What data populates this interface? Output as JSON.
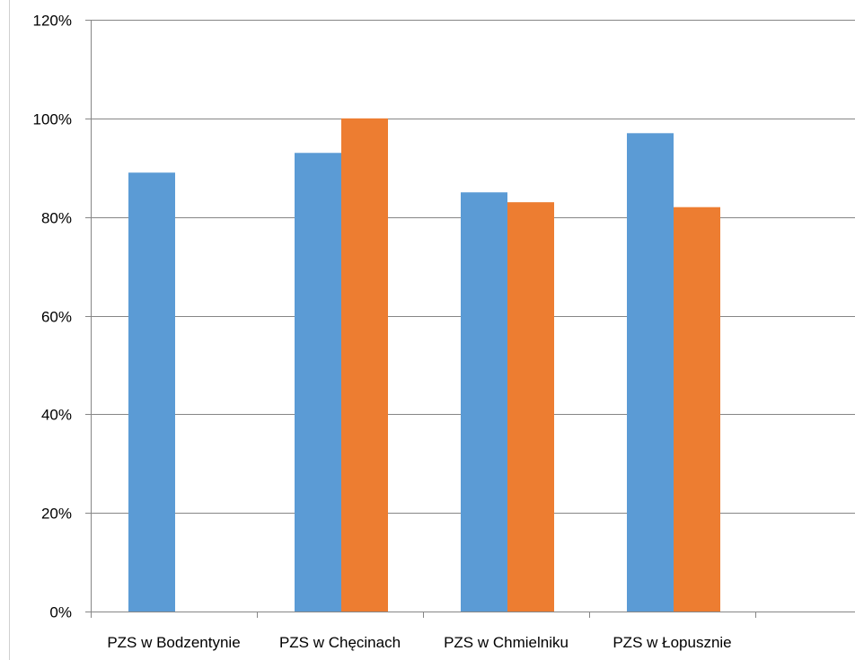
{
  "chart_data": {
    "type": "bar",
    "title": "",
    "xlabel": "",
    "ylabel": "",
    "categories": [
      "PZS w Bodzentynie",
      "PZS w Chęcinach",
      "PZS w Chmielniku",
      "PZS w Łopusznie",
      ""
    ],
    "series": [
      {
        "values": [
          0.89,
          0.93,
          0.85,
          0.97,
          null
        ],
        "color": "#5b9bd5"
      },
      {
        "values": [
          null,
          1.0,
          0.83,
          0.82,
          null
        ],
        "color": "#ed7d31"
      }
    ],
    "ylim": [
      0,
      1.2
    ],
    "yticks": [
      0,
      0.2,
      0.4,
      0.6,
      0.8,
      1.0,
      1.2
    ],
    "ytick_labels": [
      "0%",
      "20%",
      "40%",
      "60%",
      "80%",
      "100%",
      "120%"
    ],
    "grid": true,
    "legend": "none"
  }
}
